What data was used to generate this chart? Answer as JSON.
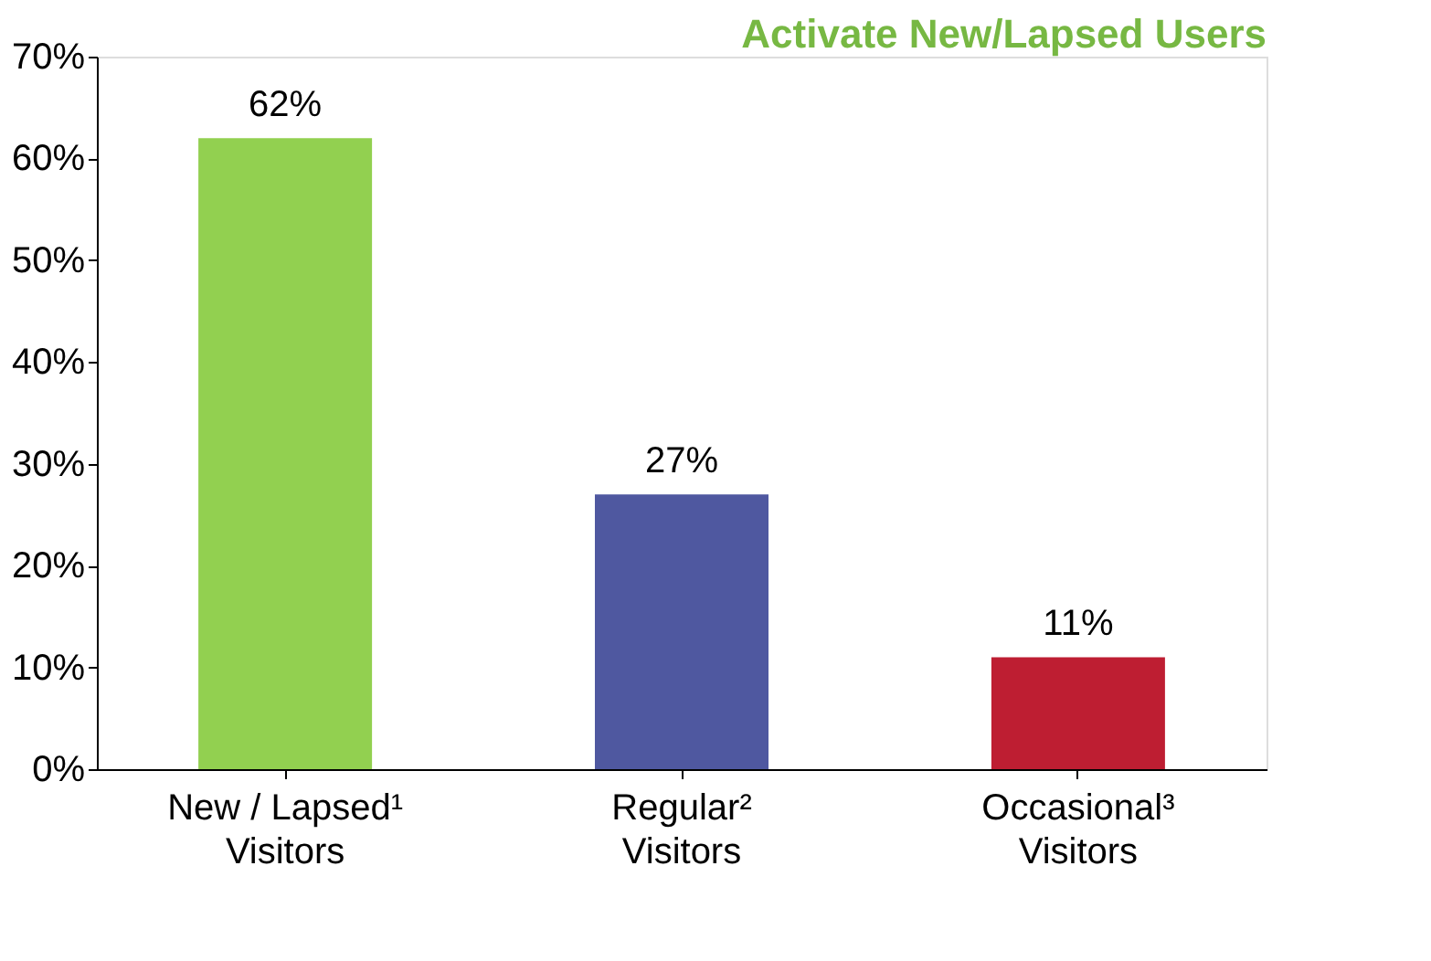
{
  "chart_data": {
    "type": "bar",
    "title": "Activate New/Lapsed Users",
    "categories": [
      "New / Lapsed¹ Visitors",
      "Regular² Visitors",
      "Occasional³ Visitors"
    ],
    "values": [
      62,
      27,
      11
    ],
    "colors": [
      "#92d050",
      "#4f58a0",
      "#be1e32"
    ],
    "value_labels": [
      "62%",
      "27%",
      "11%"
    ],
    "ylim": [
      0,
      70
    ],
    "yticks": [
      {
        "value": 0,
        "label": "0%"
      },
      {
        "value": 10,
        "label": "10%"
      },
      {
        "value": 20,
        "label": "20%"
      },
      {
        "value": 30,
        "label": "30%"
      },
      {
        "value": 40,
        "label": "40%"
      },
      {
        "value": 50,
        "label": "50%"
      },
      {
        "value": 60,
        "label": "60%"
      },
      {
        "value": 70,
        "label": "70%"
      }
    ],
    "grid": false
  }
}
